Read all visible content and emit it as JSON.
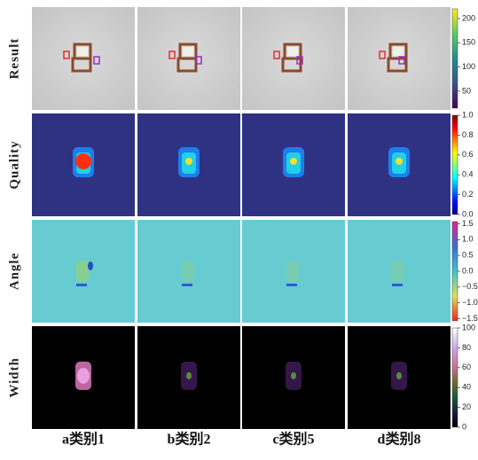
{
  "rows": [
    {
      "label": "Result",
      "colorbar": {
        "ylim": [
          15,
          220
        ],
        "yticks": [
          50,
          100,
          150,
          200
        ]
      }
    },
    {
      "label": "Quality",
      "colorbar": {
        "ylim": [
          0,
          1
        ],
        "yticks": [
          {
            "value": 0,
            "label": "0.0"
          },
          0.2,
          0.4,
          0.6,
          0.8,
          {
            "value": 1,
            "label": "1.0"
          }
        ]
      }
    },
    {
      "label": "Angle",
      "colorbar": {
        "ylim": [
          -1.57,
          1.57
        ],
        "yticks": [
          {
            "value": 1.5,
            "label": "1.5"
          },
          {
            "value": 1,
            "label": "1.0"
          },
          0.5,
          {
            "value": 0,
            "label": "0.0"
          },
          {
            "value": -0.5,
            "label": "−0.5"
          },
          {
            "value": -1,
            "label": "−1.0"
          },
          {
            "value": -1.5,
            "label": "−1.5"
          }
        ]
      }
    },
    {
      "label": "Width",
      "colorbar": {
        "ylim": [
          0,
          100
        ],
        "yticks": [
          0,
          20,
          40,
          60,
          80,
          100
        ]
      }
    }
  ],
  "columns": [
    {
      "label": "a类别1"
    },
    {
      "label": "b类别2"
    },
    {
      "label": "c类别5"
    },
    {
      "label": "d类别8"
    }
  ]
}
